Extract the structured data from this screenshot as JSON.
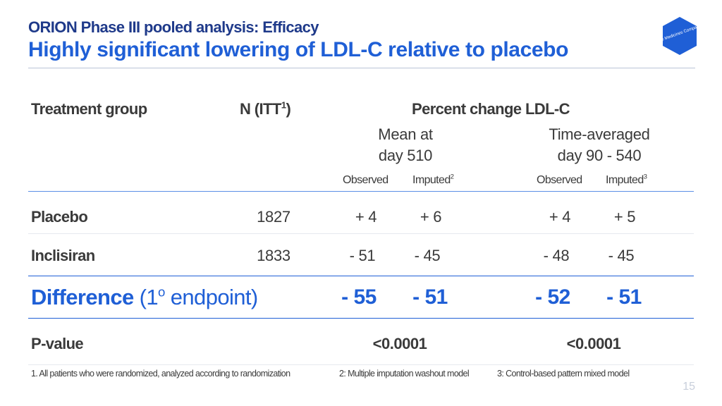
{
  "header": {
    "subtitle": "ORION Phase III pooled analysis: Efficacy",
    "title": "Highly significant lowering of LDL-C relative to placebo"
  },
  "logo": {
    "icon": "hexagon-logo-icon",
    "color": "#1f5fd6",
    "text": "The Medicines Company"
  },
  "table": {
    "col_treatment": "Treatment group",
    "col_n": "N (ITT",
    "col_n_sup": "1",
    "col_n_close": ")",
    "col_pct": "Percent change LDL-C",
    "group1_line1": "Mean at",
    "group1_line2": "day 510",
    "group2_line1": "Time-averaged",
    "group2_line2": "day 90 - 540",
    "observed": "Observed",
    "imputed": "Imputed",
    "imputed_sup_1": "2",
    "imputed_sup_2": "3",
    "rows": [
      {
        "label": "Placebo",
        "n": "1827",
        "v1": "+ 4",
        "v2": "+ 6",
        "v3": "+ 4",
        "v4": "+ 5"
      },
      {
        "label": "Inclisiran",
        "n": "1833",
        "v1": "- 51",
        "v2": "- 45",
        "v3": "- 48",
        "v4": "- 45"
      }
    ],
    "difference": {
      "label": "Difference",
      "qualifier_open": "(1",
      "qualifier_sup": "o",
      "qualifier_close": " endpoint)",
      "v1": "- 55",
      "v2": "- 51",
      "v3": "- 52",
      "v4": "- 51"
    },
    "pvalue": {
      "label": "P-value",
      "p1": "<0.0001",
      "p2": "<0.0001"
    }
  },
  "footnotes": {
    "f1": "1.  All patients who were randomized, analyzed according to randomization",
    "f2": "2: Multiple imputation washout model",
    "f3": "3: Control-based pattern mixed model"
  },
  "page_number": "15",
  "colors": {
    "primary": "#1f5fd6",
    "dark_blue": "#1f3a8a",
    "text": "#3a3a3a",
    "divider": "#1f5fd6"
  }
}
